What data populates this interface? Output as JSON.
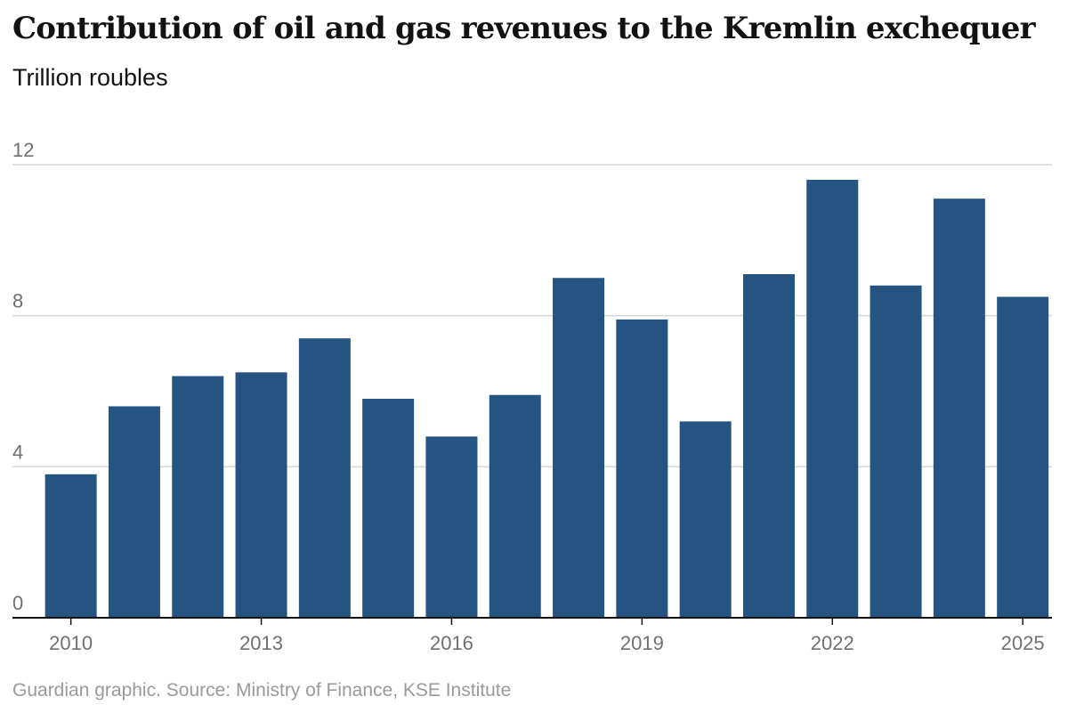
{
  "title": "Contribution of oil and gas revenues to the Kremlin exchequer",
  "subtitle": "Trillion roubles",
  "source": "Guardian graphic. Source: Ministry of Finance, KSE Institute",
  "colors": {
    "bar": "#255483",
    "grid": "#d6d6d6",
    "axis": "#121212"
  },
  "chart_data": {
    "type": "bar",
    "title": "Contribution of oil and gas revenues to the Kremlin exchequer",
    "ylabel": "Trillion roubles",
    "xlabel": "",
    "ylim": [
      0,
      12
    ],
    "yticks": [
      0,
      4,
      8,
      12
    ],
    "categories": [
      "2010",
      "2011",
      "2012",
      "2013",
      "2014",
      "2015",
      "2016",
      "2017",
      "2018",
      "2019",
      "2020",
      "2021",
      "2022",
      "2023",
      "2024",
      "2025"
    ],
    "xtick_labels": [
      "2010",
      "2013",
      "2016",
      "2019",
      "2022",
      "2025"
    ],
    "values": [
      3.8,
      5.6,
      6.4,
      6.5,
      7.4,
      5.8,
      4.8,
      5.9,
      9.0,
      7.9,
      5.2,
      9.1,
      11.6,
      8.8,
      11.1,
      8.5
    ],
    "grid": true,
    "legend": "none"
  }
}
